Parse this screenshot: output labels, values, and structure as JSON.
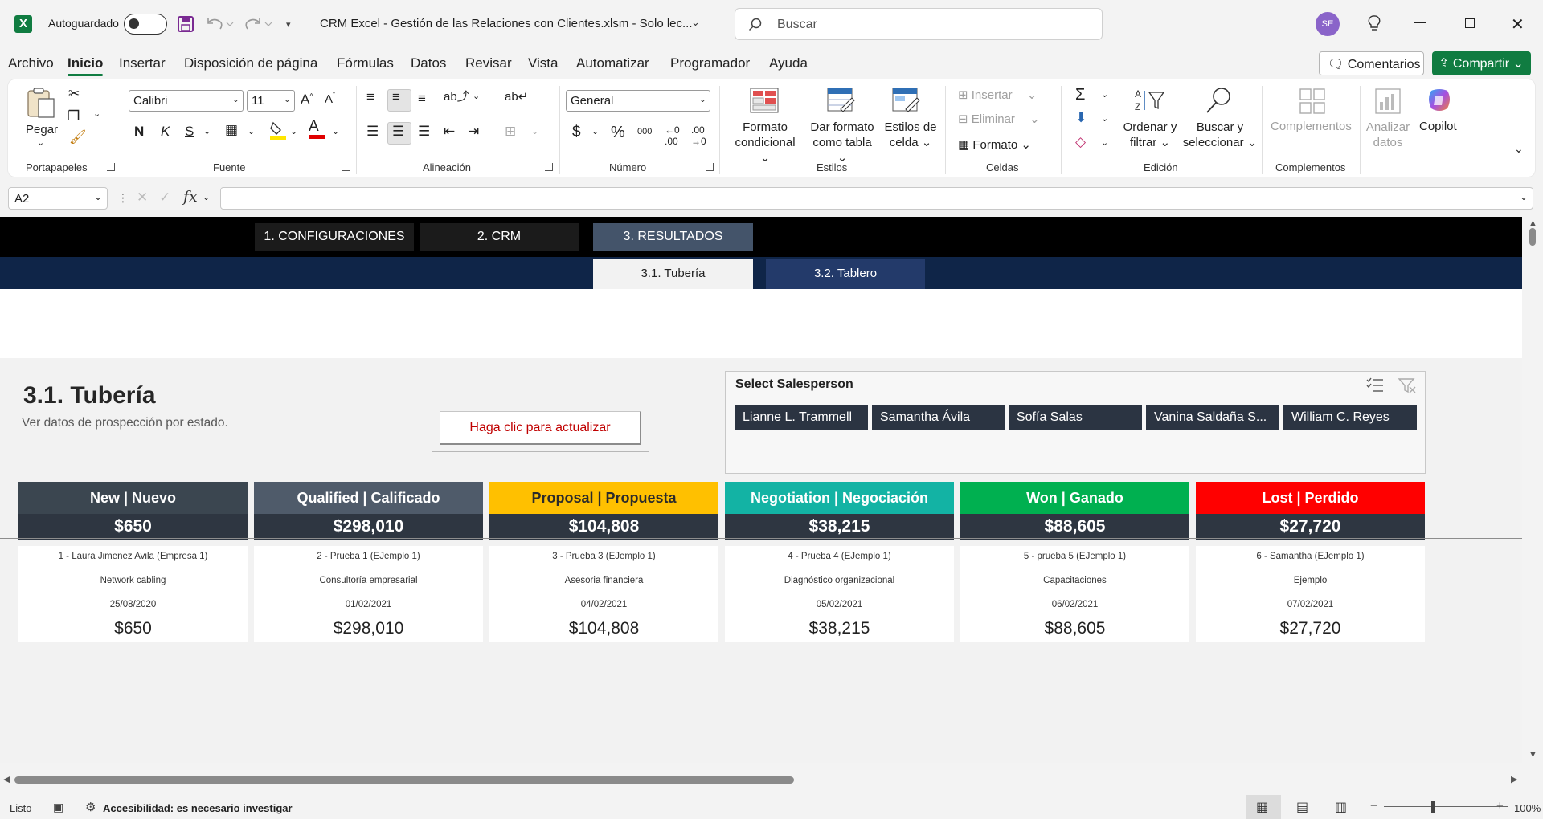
{
  "titlebar": {
    "autosave_label": "Autoguardado",
    "doc_title": "CRM Excel - Gestión de las Relaciones con Clientes.xlsm  -  Solo lec...",
    "search_placeholder": "Buscar",
    "avatar_initials": "SE"
  },
  "menu": {
    "tabs": [
      "Archivo",
      "Inicio",
      "Insertar",
      "Disposición de página",
      "Fórmulas",
      "Datos",
      "Revisar",
      "Vista",
      "Automatizar",
      "Programador",
      "Ayuda"
    ],
    "active": "Inicio",
    "comments_label": "Comentarios",
    "share_label": "Compartir"
  },
  "ribbon": {
    "paste_label": "Pegar",
    "font_name": "Calibri",
    "font_size": "11",
    "bold": "N",
    "italic": "K",
    "underline": "S",
    "number_format": "General",
    "cond_format": [
      "Formato",
      "condicional"
    ],
    "format_table": [
      "Dar formato",
      "como tabla"
    ],
    "cell_styles": [
      "Estilos de",
      "celda"
    ],
    "cells_insert": "Insertar",
    "cells_delete": "Eliminar",
    "cells_format": "Formato",
    "sort_filter": [
      "Ordenar y",
      "filtrar"
    ],
    "find_select": [
      "Buscar y",
      "seleccionar"
    ],
    "addins": "Complementos",
    "analyze": [
      "Analizar",
      "datos"
    ],
    "copilot": "Copilot",
    "groups": {
      "clipboard": "Portapapeles",
      "font": "Fuente",
      "alignment": "Alineación",
      "number": "Número",
      "styles": "Estilos",
      "cells": "Celdas",
      "editing": "Edición",
      "addins": "Complementos"
    }
  },
  "formula_bar": {
    "name_box": "A2",
    "fx": "fx",
    "value": ""
  },
  "sheet": {
    "nav_tabs": [
      "1. CONFIGURACIONES",
      "2. CRM",
      "3. RESULTADOS"
    ],
    "active_nav": "3. RESULTADOS",
    "sub_tabs": [
      "3.1. Tubería",
      "3.2. Tablero"
    ],
    "active_sub": "3.1. Tubería",
    "title": "3.1. Tubería",
    "subtitle": "Ver datos de prospección por estado.",
    "refresh_button": "Haga clic para actualizar",
    "slicer": {
      "title": "Select Salesperson",
      "items": [
        "Lianne L. Trammell",
        "Samantha Ávila",
        "Sofía Salas",
        "Vanina Saldaña S...",
        "William C. Reyes"
      ]
    },
    "stages": [
      {
        "name": "New | Nuevo",
        "total": "$650",
        "color": "#3b4650",
        "text_color": "#ffffff",
        "card": {
          "title": "1 - Laura Jimenez Avila (Empresa 1)",
          "desc": "Network cabling",
          "date": "25/08/2020",
          "amount": "$650"
        }
      },
      {
        "name": "Qualified | Calificado",
        "total": "$298,010",
        "color": "#4f5b6a",
        "text_color": "#ffffff",
        "card": {
          "title": "2 - Prueba 1 (EJemplo 1)",
          "desc": "Consultoría empresarial",
          "date": "01/02/2021",
          "amount": "$298,010"
        }
      },
      {
        "name": "Proposal | Propuesta",
        "total": "$104,808",
        "color": "#ffc000",
        "text_color": "#2b2b2b",
        "card": {
          "title": "3 - Prueba 3 (EJemplo 1)",
          "desc": "Asesoria financiera",
          "date": "04/02/2021",
          "amount": "$104,808"
        }
      },
      {
        "name": "Negotiation | Negociación",
        "total": "$38,215",
        "color": "#13b3a4",
        "text_color": "#ffffff",
        "card": {
          "title": "4 - Prueba 4 (EJemplo 1)",
          "desc": "Diagnóstico organizacional",
          "date": "05/02/2021",
          "amount": "$38,215"
        }
      },
      {
        "name": "Won | Ganado",
        "total": "$88,605",
        "color": "#00b050",
        "text_color": "#ffffff",
        "card": {
          "title": "5 - prueba 5 (EJemplo 1)",
          "desc": "Capacitaciones",
          "date": "06/02/2021",
          "amount": "$88,605"
        }
      },
      {
        "name": "Lost | Perdido",
        "total": "$27,720",
        "color": "#ff0000",
        "text_color": "#ffffff",
        "card": {
          "title": "6 - Samantha (EJemplo 1)",
          "desc": "Ejemplo",
          "date": "07/02/2021",
          "amount": "$27,720"
        }
      }
    ]
  },
  "status": {
    "ready": "Listo",
    "accessibility": "Accesibilidad: es necesario investigar",
    "zoom": "100%"
  }
}
